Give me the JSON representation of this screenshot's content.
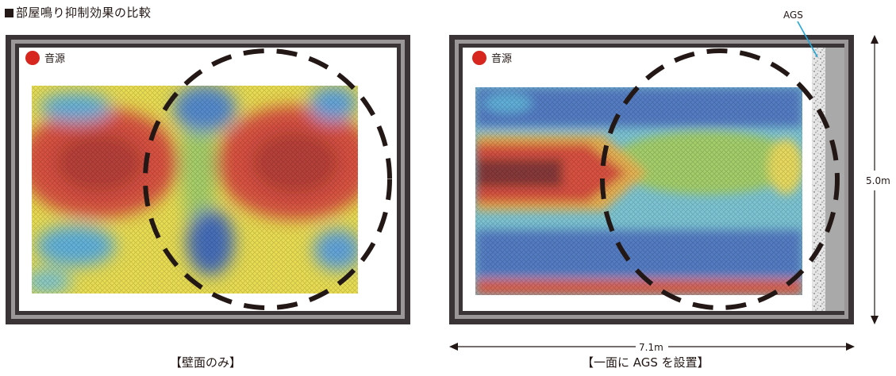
{
  "title": "部屋鳴り抑制効果の比較",
  "source_label": "音源",
  "ags_label": "AGS",
  "dimension_height": "5.0m",
  "dimension_width": "7.1m",
  "captions": {
    "left": "【壁面のみ】",
    "right": "【一面に AGS を設置】"
  },
  "colors": {
    "frame_dark": "#3b3436",
    "frame_gray": "#9b9698",
    "source_dot": "#d7261e",
    "ags_leader": "#23a6d8",
    "ags_gray": "#a9a9a9",
    "heat_red": "#c81e14",
    "heat_yellow": "#e8df2c",
    "heat_green": "#4fb14a",
    "heat_blue": "#1e4fa8"
  }
}
